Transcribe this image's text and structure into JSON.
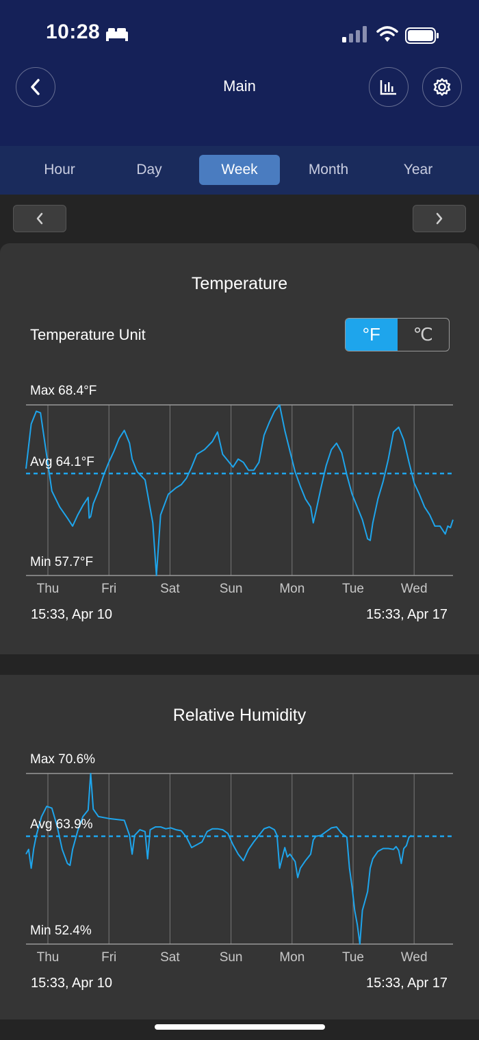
{
  "status": {
    "time": "10:28"
  },
  "header": {
    "title": "Main"
  },
  "icons": {
    "back": "chevron-left-icon",
    "stats": "bar-chart-icon",
    "settings": "gear-icon",
    "bed": "bed-icon",
    "signal": "signal-icon",
    "wifi": "wifi-icon",
    "battery": "battery-icon"
  },
  "tabs": [
    "Hour",
    "Day",
    "Week",
    "Month",
    "Year"
  ],
  "active_tab": "Week",
  "temperature": {
    "title": "Temperature",
    "unit_label": "Temperature Unit",
    "unit_f": "°F",
    "unit_c": "℃",
    "max_label": "Max 68.4°F",
    "avg_label": "Avg 64.1°F",
    "min_label": "Min 57.7°F",
    "start": "15:33,  Apr 10",
    "end": "15:33,  Apr 17"
  },
  "humidity": {
    "title": "Relative Humidity",
    "max_label": "Max 70.6%",
    "avg_label": "Avg 63.9%",
    "min_label": "Min 52.4%",
    "start": "15:33,  Apr 10",
    "end": "15:33,  Apr 17"
  },
  "colors": {
    "line": "#1ea5ec",
    "header": "#152158",
    "active_tab": "#4a7cc0"
  },
  "chart_data": [
    {
      "type": "line",
      "title": "Temperature",
      "x_ticks": [
        "Thu",
        "Fri",
        "Sat",
        "Sun",
        "Mon",
        "Tue",
        "Wed"
      ],
      "ylim": [
        57.7,
        68.4
      ],
      "avg": 64.1,
      "x_range_days": [
        0,
        7
      ],
      "series": [
        {
          "points": [
            [
              0.0,
              64.4
            ],
            [
              0.1,
              67.2
            ],
            [
              0.2,
              68.0
            ],
            [
              0.28,
              67.9
            ],
            [
              0.4,
              65.2
            ],
            [
              0.5,
              63.0
            ],
            [
              0.65,
              62.0
            ],
            [
              0.8,
              61.3
            ],
            [
              0.9,
              60.8
            ],
            [
              1.0,
              61.5
            ],
            [
              1.1,
              62.1
            ],
            [
              1.2,
              62.6
            ],
            [
              1.22,
              61.3
            ],
            [
              1.25,
              61.4
            ],
            [
              1.3,
              62.2
            ],
            [
              1.4,
              63.0
            ],
            [
              1.5,
              64.0
            ],
            [
              1.6,
              64.8
            ],
            [
              1.7,
              65.5
            ],
            [
              1.8,
              66.3
            ],
            [
              1.9,
              66.8
            ],
            [
              2.0,
              66.0
            ],
            [
              2.05,
              65.0
            ],
            [
              2.15,
              64.2
            ],
            [
              2.3,
              63.7
            ],
            [
              2.45,
              61.0
            ],
            [
              2.52,
              57.7
            ],
            [
              2.6,
              61.5
            ],
            [
              2.75,
              62.8
            ],
            [
              2.9,
              63.2
            ],
            [
              3.0,
              63.4
            ],
            [
              3.1,
              63.8
            ],
            [
              3.2,
              64.5
            ],
            [
              3.3,
              65.3
            ],
            [
              3.45,
              65.6
            ],
            [
              3.6,
              66.1
            ],
            [
              3.7,
              66.7
            ],
            [
              3.8,
              65.3
            ],
            [
              3.9,
              64.9
            ],
            [
              4.0,
              64.5
            ],
            [
              4.1,
              65.0
            ],
            [
              4.2,
              64.8
            ],
            [
              4.3,
              64.3
            ],
            [
              4.4,
              64.3
            ],
            [
              4.5,
              64.8
            ],
            [
              4.6,
              66.5
            ],
            [
              4.7,
              67.3
            ],
            [
              4.8,
              68.0
            ],
            [
              4.9,
              68.4
            ],
            [
              5.0,
              66.8
            ],
            [
              5.1,
              65.5
            ],
            [
              5.2,
              64.2
            ],
            [
              5.3,
              63.3
            ],
            [
              5.4,
              62.5
            ],
            [
              5.5,
              62.0
            ],
            [
              5.55,
              61.0
            ],
            [
              5.6,
              61.7
            ],
            [
              5.7,
              63.2
            ],
            [
              5.8,
              64.6
            ],
            [
              5.9,
              65.6
            ],
            [
              6.0,
              66.0
            ],
            [
              6.1,
              65.4
            ],
            [
              6.2,
              64.0
            ],
            [
              6.3,
              62.8
            ],
            [
              6.4,
              62.0
            ],
            [
              6.5,
              61.2
            ],
            [
              6.6,
              60.0
            ],
            [
              6.65,
              59.9
            ],
            [
              6.7,
              61.0
            ],
            [
              6.8,
              62.5
            ],
            [
              6.9,
              63.6
            ],
            [
              7.0,
              65.0
            ],
            [
              7.1,
              66.7
            ],
            [
              7.2,
              67.0
            ],
            [
              7.3,
              66.2
            ],
            [
              7.4,
              64.8
            ],
            [
              7.5,
              63.5
            ],
            [
              7.6,
              62.8
            ],
            [
              7.7,
              62.0
            ],
            [
              7.8,
              61.5
            ],
            [
              7.9,
              60.8
            ],
            [
              8.0,
              60.8
            ],
            [
              8.1,
              60.3
            ],
            [
              8.15,
              60.8
            ],
            [
              8.2,
              60.7
            ],
            [
              8.25,
              61.2
            ]
          ]
        }
      ]
    },
    {
      "type": "line",
      "title": "Relative Humidity",
      "x_ticks": [
        "Thu",
        "Fri",
        "Sat",
        "Sun",
        "Mon",
        "Tue",
        "Wed"
      ],
      "ylim": [
        52.4,
        70.6
      ],
      "avg": 63.9,
      "x_range_days": [
        0,
        7
      ],
      "series": [
        {
          "points": [
            [
              0.0,
              62.0
            ],
            [
              0.05,
              62.5
            ],
            [
              0.1,
              60.5
            ],
            [
              0.15,
              62.6
            ],
            [
              0.2,
              64.0
            ],
            [
              0.3,
              66.0
            ],
            [
              0.4,
              67.1
            ],
            [
              0.5,
              66.9
            ],
            [
              0.6,
              65.0
            ],
            [
              0.7,
              62.5
            ],
            [
              0.8,
              61.0
            ],
            [
              0.85,
              60.8
            ],
            [
              0.9,
              62.5
            ],
            [
              1.0,
              64.5
            ],
            [
              1.1,
              66.0
            ],
            [
              1.2,
              66.7
            ],
            [
              1.25,
              70.6
            ],
            [
              1.3,
              66.8
            ],
            [
              1.4,
              66.0
            ],
            [
              1.6,
              65.8
            ],
            [
              1.9,
              65.6
            ],
            [
              2.0,
              64.0
            ],
            [
              2.05,
              62.0
            ],
            [
              2.1,
              64.0
            ],
            [
              2.2,
              64.6
            ],
            [
              2.3,
              64.4
            ],
            [
              2.35,
              61.5
            ],
            [
              2.4,
              64.6
            ],
            [
              2.5,
              64.9
            ],
            [
              2.6,
              64.9
            ],
            [
              2.7,
              64.7
            ],
            [
              2.8,
              64.8
            ],
            [
              2.9,
              64.6
            ],
            [
              3.0,
              64.5
            ],
            [
              3.1,
              63.8
            ],
            [
              3.2,
              62.7
            ],
            [
              3.3,
              63.0
            ],
            [
              3.4,
              63.3
            ],
            [
              3.5,
              64.4
            ],
            [
              3.6,
              64.7
            ],
            [
              3.7,
              64.7
            ],
            [
              3.8,
              64.6
            ],
            [
              3.9,
              64.2
            ],
            [
              4.0,
              63.0
            ],
            [
              4.1,
              62.0
            ],
            [
              4.2,
              61.3
            ],
            [
              4.3,
              62.5
            ],
            [
              4.4,
              63.3
            ],
            [
              4.5,
              64.0
            ],
            [
              4.6,
              64.7
            ],
            [
              4.7,
              64.9
            ],
            [
              4.8,
              64.6
            ],
            [
              4.85,
              64.0
            ],
            [
              4.9,
              60.5
            ],
            [
              5.0,
              62.7
            ],
            [
              5.05,
              61.7
            ],
            [
              5.1,
              62.0
            ],
            [
              5.2,
              61.2
            ],
            [
              5.25,
              59.5
            ],
            [
              5.3,
              60.5
            ],
            [
              5.4,
              61.3
            ],
            [
              5.5,
              62.0
            ],
            [
              5.55,
              63.5
            ],
            [
              5.6,
              63.9
            ],
            [
              5.7,
              64.0
            ],
            [
              5.8,
              64.4
            ],
            [
              5.9,
              64.8
            ],
            [
              6.0,
              64.9
            ],
            [
              6.1,
              64.2
            ],
            [
              6.15,
              64.0
            ],
            [
              6.2,
              63.8
            ],
            [
              6.25,
              60.5
            ],
            [
              6.3,
              58.5
            ],
            [
              6.35,
              56.0
            ],
            [
              6.4,
              54.5
            ],
            [
              6.45,
              52.4
            ],
            [
              6.5,
              56.0
            ],
            [
              6.55,
              57.0
            ],
            [
              6.6,
              58.0
            ],
            [
              6.65,
              60.5
            ],
            [
              6.7,
              61.5
            ],
            [
              6.8,
              62.3
            ],
            [
              6.9,
              62.6
            ],
            [
              7.0,
              62.6
            ],
            [
              7.1,
              62.5
            ],
            [
              7.15,
              62.8
            ],
            [
              7.2,
              62.4
            ],
            [
              7.25,
              61.0
            ],
            [
              7.3,
              62.6
            ],
            [
              7.35,
              62.9
            ],
            [
              7.4,
              63.8
            ],
            [
              7.45,
              64.0
            ]
          ]
        }
      ]
    }
  ]
}
